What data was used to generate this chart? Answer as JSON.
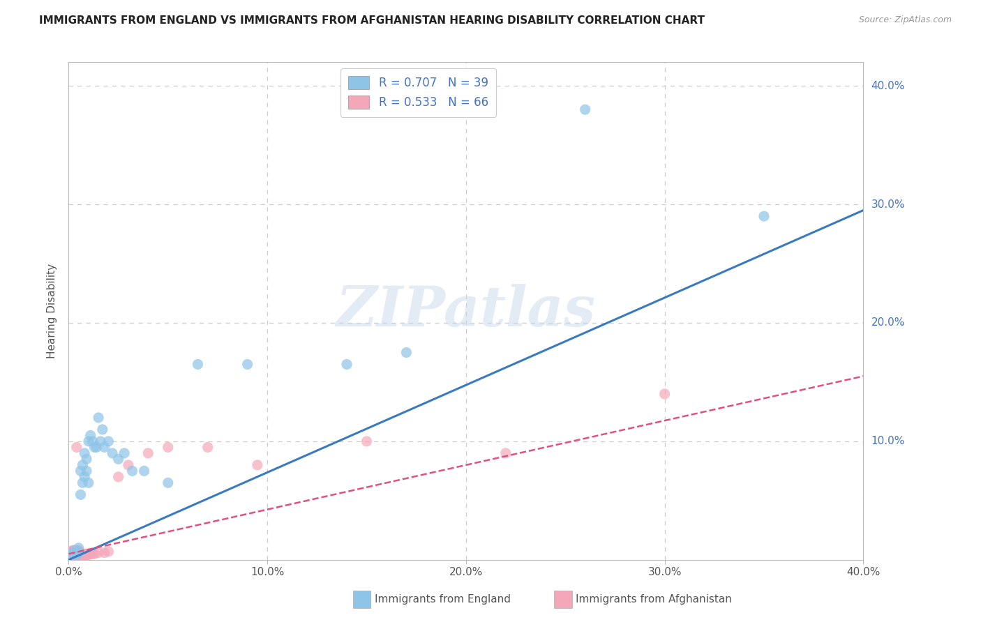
{
  "title": "IMMIGRANTS FROM ENGLAND VS IMMIGRANTS FROM AFGHANISTAN HEARING DISABILITY CORRELATION CHART",
  "source": "Source: ZipAtlas.com",
  "ylabel": "Hearing Disability",
  "watermark": "ZIPatlas",
  "xlim": [
    0.0,
    0.4
  ],
  "ylim": [
    0.0,
    0.42
  ],
  "xticks": [
    0.0,
    0.1,
    0.2,
    0.3,
    0.4
  ],
  "yticks": [
    0.0,
    0.1,
    0.2,
    0.3,
    0.4
  ],
  "xtick_labels": [
    "0.0%",
    "10.0%",
    "20.0%",
    "30.0%",
    "40.0%"
  ],
  "ytick_labels": [
    "",
    "10.0%",
    "20.0%",
    "30.0%",
    "40.0%"
  ],
  "blue_color": "#8ec4e8",
  "pink_color": "#f4a7b9",
  "blue_line_color": "#3a7abf",
  "pink_line_color": "#e05080",
  "blue_scatter_x": [
    0.001,
    0.002,
    0.003,
    0.003,
    0.004,
    0.004,
    0.005,
    0.005,
    0.006,
    0.006,
    0.007,
    0.007,
    0.008,
    0.008,
    0.009,
    0.009,
    0.01,
    0.01,
    0.011,
    0.012,
    0.013,
    0.014,
    0.015,
    0.016,
    0.017,
    0.018,
    0.02,
    0.022,
    0.025,
    0.028,
    0.032,
    0.038,
    0.05,
    0.065,
    0.09,
    0.14,
    0.17,
    0.26,
    0.35
  ],
  "blue_scatter_y": [
    0.005,
    0.005,
    0.005,
    0.008,
    0.004,
    0.007,
    0.006,
    0.01,
    0.055,
    0.075,
    0.065,
    0.08,
    0.07,
    0.09,
    0.075,
    0.085,
    0.065,
    0.1,
    0.105,
    0.1,
    0.095,
    0.095,
    0.12,
    0.1,
    0.11,
    0.095,
    0.1,
    0.09,
    0.085,
    0.09,
    0.075,
    0.075,
    0.065,
    0.165,
    0.165,
    0.165,
    0.175,
    0.38,
    0.29
  ],
  "pink_scatter_x": [
    0.001,
    0.001,
    0.001,
    0.001,
    0.001,
    0.001,
    0.002,
    0.002,
    0.002,
    0.002,
    0.002,
    0.002,
    0.002,
    0.002,
    0.002,
    0.002,
    0.003,
    0.003,
    0.003,
    0.003,
    0.003,
    0.003,
    0.003,
    0.003,
    0.004,
    0.004,
    0.004,
    0.004,
    0.004,
    0.004,
    0.005,
    0.005,
    0.005,
    0.005,
    0.005,
    0.005,
    0.005,
    0.006,
    0.006,
    0.006,
    0.006,
    0.007,
    0.007,
    0.007,
    0.008,
    0.008,
    0.008,
    0.009,
    0.009,
    0.01,
    0.01,
    0.011,
    0.012,
    0.013,
    0.015,
    0.018,
    0.02,
    0.025,
    0.03,
    0.04,
    0.05,
    0.07,
    0.095,
    0.15,
    0.22,
    0.3
  ],
  "pink_scatter_y": [
    0.002,
    0.003,
    0.004,
    0.005,
    0.006,
    0.007,
    0.002,
    0.003,
    0.004,
    0.005,
    0.006,
    0.007,
    0.008,
    0.002,
    0.003,
    0.004,
    0.002,
    0.003,
    0.004,
    0.005,
    0.006,
    0.003,
    0.004,
    0.005,
    0.002,
    0.003,
    0.004,
    0.005,
    0.006,
    0.095,
    0.002,
    0.003,
    0.004,
    0.005,
    0.006,
    0.007,
    0.008,
    0.003,
    0.004,
    0.005,
    0.006,
    0.003,
    0.004,
    0.005,
    0.003,
    0.004,
    0.005,
    0.004,
    0.005,
    0.004,
    0.005,
    0.005,
    0.005,
    0.005,
    0.006,
    0.006,
    0.007,
    0.07,
    0.08,
    0.09,
    0.095,
    0.095,
    0.08,
    0.1,
    0.09,
    0.14
  ],
  "blue_trend_x": [
    0.0,
    0.4
  ],
  "blue_trend_y": [
    0.0,
    0.295
  ],
  "pink_trend_x": [
    0.0,
    0.4
  ],
  "pink_trend_y": [
    0.005,
    0.155
  ],
  "background_color": "#ffffff",
  "grid_color": "#cccccc",
  "axis_color": "#bbbbbb",
  "footer_labels": [
    "Immigrants from England",
    "Immigrants from Afghanistan"
  ]
}
